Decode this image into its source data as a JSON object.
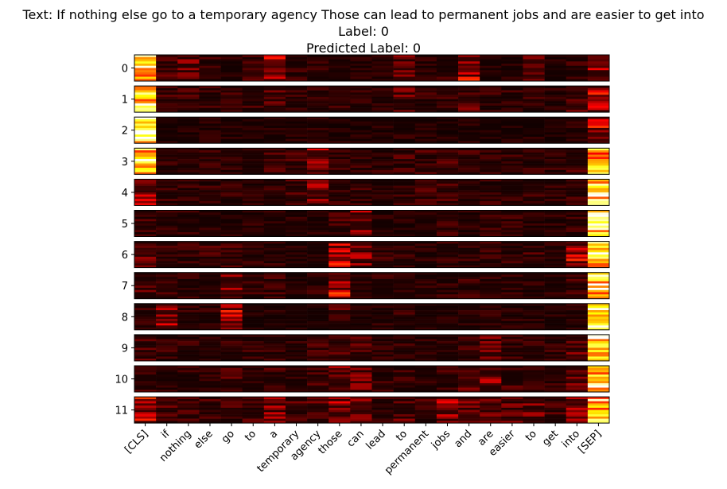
{
  "header": {
    "text": "Text: If nothing else go to a temporary agency Those can lead to permanent jobs and are easier to get into",
    "label": "Label: 0",
    "predicted": "Predicted Label: 0"
  },
  "chart_data": {
    "type": "heatmap",
    "title": "Text: If nothing else go to a temporary agency Those can lead to permanent jobs and are easier to get into",
    "colormap": "hot",
    "layers": [
      "0",
      "1",
      "2",
      "3",
      "4",
      "5",
      "6",
      "7",
      "8",
      "9",
      "10",
      "11"
    ],
    "tokens": [
      "[CLS]",
      "if",
      "nothing",
      "else",
      "go",
      "to",
      "a",
      "temporary",
      "agency",
      "those",
      "can",
      "lead",
      "to",
      "permanent",
      "jobs",
      "and",
      "are",
      "easier",
      "to",
      "get",
      "into",
      "[SEP]"
    ],
    "rows_per_layer": 12,
    "attention_summary": [
      [
        0.85,
        0.12,
        0.18,
        0.08,
        0.06,
        0.1,
        0.35,
        0.08,
        0.08,
        0.06,
        0.06,
        0.06,
        0.15,
        0.06,
        0.08,
        0.3,
        0.06,
        0.06,
        0.15,
        0.06,
        0.08,
        0.25
      ],
      [
        0.9,
        0.1,
        0.1,
        0.08,
        0.08,
        0.1,
        0.12,
        0.08,
        0.1,
        0.08,
        0.08,
        0.06,
        0.15,
        0.08,
        0.08,
        0.15,
        0.08,
        0.08,
        0.08,
        0.06,
        0.15,
        0.3
      ],
      [
        0.97,
        0.05,
        0.05,
        0.05,
        0.05,
        0.05,
        0.06,
        0.06,
        0.08,
        0.05,
        0.05,
        0.05,
        0.06,
        0.05,
        0.05,
        0.06,
        0.05,
        0.05,
        0.05,
        0.05,
        0.06,
        0.35
      ],
      [
        0.9,
        0.08,
        0.08,
        0.08,
        0.08,
        0.08,
        0.1,
        0.12,
        0.3,
        0.1,
        0.08,
        0.08,
        0.1,
        0.1,
        0.12,
        0.1,
        0.1,
        0.08,
        0.08,
        0.08,
        0.1,
        0.75
      ],
      [
        0.25,
        0.08,
        0.08,
        0.08,
        0.08,
        0.06,
        0.08,
        0.12,
        0.2,
        0.1,
        0.08,
        0.06,
        0.08,
        0.1,
        0.1,
        0.08,
        0.08,
        0.08,
        0.08,
        0.08,
        0.1,
        0.95
      ],
      [
        0.1,
        0.08,
        0.08,
        0.06,
        0.06,
        0.06,
        0.06,
        0.06,
        0.06,
        0.1,
        0.25,
        0.06,
        0.06,
        0.06,
        0.08,
        0.06,
        0.08,
        0.08,
        0.06,
        0.06,
        0.08,
        0.9
      ],
      [
        0.15,
        0.12,
        0.08,
        0.1,
        0.1,
        0.08,
        0.08,
        0.06,
        0.06,
        0.3,
        0.2,
        0.08,
        0.08,
        0.06,
        0.1,
        0.08,
        0.08,
        0.08,
        0.1,
        0.08,
        0.3,
        0.9
      ],
      [
        0.12,
        0.1,
        0.08,
        0.08,
        0.2,
        0.08,
        0.1,
        0.06,
        0.08,
        0.35,
        0.08,
        0.08,
        0.06,
        0.06,
        0.08,
        0.08,
        0.08,
        0.08,
        0.06,
        0.06,
        0.1,
        0.95
      ],
      [
        0.1,
        0.25,
        0.08,
        0.08,
        0.3,
        0.06,
        0.06,
        0.06,
        0.06,
        0.12,
        0.06,
        0.06,
        0.08,
        0.06,
        0.06,
        0.06,
        0.06,
        0.06,
        0.06,
        0.06,
        0.06,
        0.9
      ],
      [
        0.12,
        0.08,
        0.08,
        0.08,
        0.08,
        0.08,
        0.08,
        0.08,
        0.1,
        0.12,
        0.12,
        0.08,
        0.08,
        0.08,
        0.1,
        0.1,
        0.15,
        0.08,
        0.1,
        0.08,
        0.15,
        0.95
      ],
      [
        0.12,
        0.08,
        0.08,
        0.08,
        0.12,
        0.08,
        0.1,
        0.08,
        0.1,
        0.2,
        0.2,
        0.08,
        0.08,
        0.08,
        0.1,
        0.15,
        0.2,
        0.1,
        0.12,
        0.08,
        0.15,
        0.92
      ],
      [
        0.35,
        0.12,
        0.1,
        0.1,
        0.1,
        0.1,
        0.2,
        0.12,
        0.15,
        0.25,
        0.25,
        0.08,
        0.15,
        0.1,
        0.25,
        0.2,
        0.2,
        0.15,
        0.2,
        0.12,
        0.2,
        0.85
      ]
    ]
  }
}
